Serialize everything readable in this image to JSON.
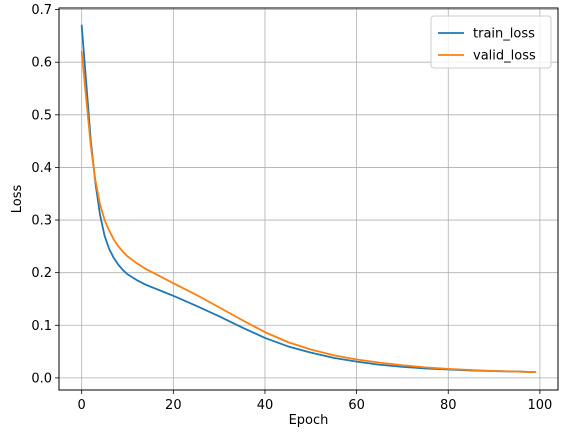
{
  "chart_data": {
    "type": "line",
    "xlabel": "Epoch",
    "ylabel": "Loss",
    "xlim": [
      -4.95,
      103.95
    ],
    "ylim": [
      -0.023,
      0.703
    ],
    "xticks": [
      0,
      20,
      40,
      60,
      80,
      100
    ],
    "yticks": [
      0.0,
      0.1,
      0.2,
      0.3,
      0.4,
      0.5,
      0.6,
      0.7
    ],
    "xtick_labels": [
      "0",
      "20",
      "40",
      "60",
      "80",
      "100"
    ],
    "ytick_labels": [
      "0.0",
      "0.1",
      "0.2",
      "0.3",
      "0.4",
      "0.5",
      "0.6",
      "0.7"
    ],
    "grid": true,
    "legend_position": "top-right",
    "series": [
      {
        "name": "train_loss",
        "color": "#1f77b4",
        "x": [
          0,
          1,
          2,
          3,
          4,
          5,
          6,
          7,
          8,
          9,
          10,
          12,
          14,
          16,
          18,
          20,
          25,
          30,
          35,
          40,
          45,
          50,
          55,
          60,
          65,
          70,
          75,
          80,
          85,
          90,
          95,
          99
        ],
        "y": [
          0.67,
          0.56,
          0.45,
          0.37,
          0.31,
          0.27,
          0.245,
          0.228,
          0.215,
          0.205,
          0.197,
          0.186,
          0.177,
          0.17,
          0.163,
          0.156,
          0.137,
          0.117,
          0.096,
          0.076,
          0.06,
          0.048,
          0.038,
          0.031,
          0.025,
          0.021,
          0.018,
          0.016,
          0.014,
          0.013,
          0.012,
          0.011
        ]
      },
      {
        "name": "valid_loss",
        "color": "#ff7f0e",
        "x": [
          0,
          1,
          2,
          3,
          4,
          5,
          6,
          7,
          8,
          9,
          10,
          12,
          14,
          16,
          18,
          20,
          25,
          30,
          35,
          40,
          45,
          50,
          55,
          60,
          65,
          70,
          75,
          80,
          85,
          90,
          95,
          99
        ],
        "y": [
          0.62,
          0.53,
          0.44,
          0.375,
          0.33,
          0.3,
          0.28,
          0.263,
          0.25,
          0.24,
          0.231,
          0.218,
          0.207,
          0.198,
          0.189,
          0.18,
          0.158,
          0.134,
          0.11,
          0.087,
          0.068,
          0.054,
          0.043,
          0.035,
          0.029,
          0.024,
          0.02,
          0.017,
          0.015,
          0.013,
          0.012,
          0.011
        ]
      }
    ]
  }
}
